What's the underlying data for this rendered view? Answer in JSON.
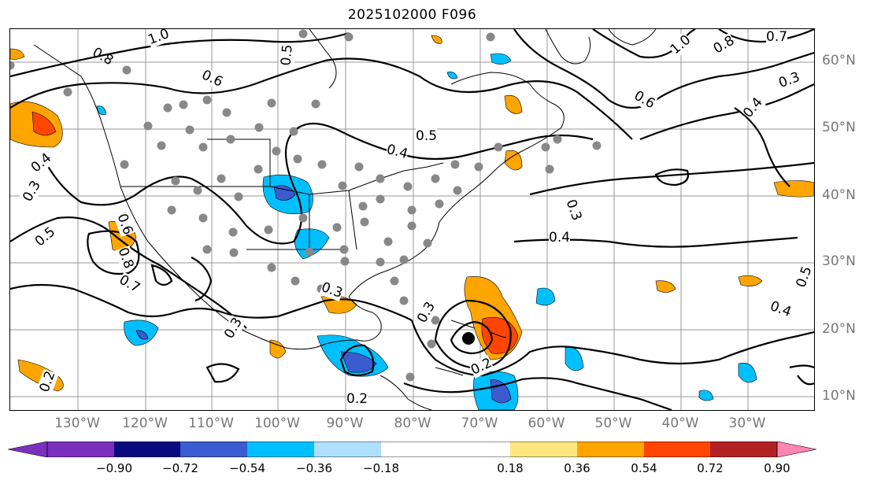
{
  "title": "2025102000 F096",
  "lat_labels": [
    "60°N",
    "50°N",
    "40°N",
    "30°N",
    "20°N",
    "10°N"
  ],
  "lon_labels": [
    "130°W",
    "120°W",
    "110°W",
    "100°W",
    "90°W",
    "80°W",
    "70°W",
    "60°W",
    "50°W",
    "40°W",
    "30°W"
  ],
  "contour_labels": [
    "1.0",
    "0.8",
    "0.7",
    "0.6",
    "0.5",
    "0.4",
    "0.3",
    "0.2"
  ],
  "colorbar": {
    "ticks": [
      "−0.90",
      "−0.72",
      "−0.54",
      "−0.36",
      "−0.18",
      "0.18",
      "0.36",
      "0.54",
      "0.72",
      "0.90"
    ],
    "colors": [
      "#7b2fbe",
      "#0a0a80",
      "#3b5bd0",
      "#00bfff",
      "#b0e0ff",
      "#ffffff",
      "#ffe680",
      "#ffa500",
      "#ff4500",
      "#b22222",
      "#ff85b5"
    ],
    "extend": "both"
  }
}
